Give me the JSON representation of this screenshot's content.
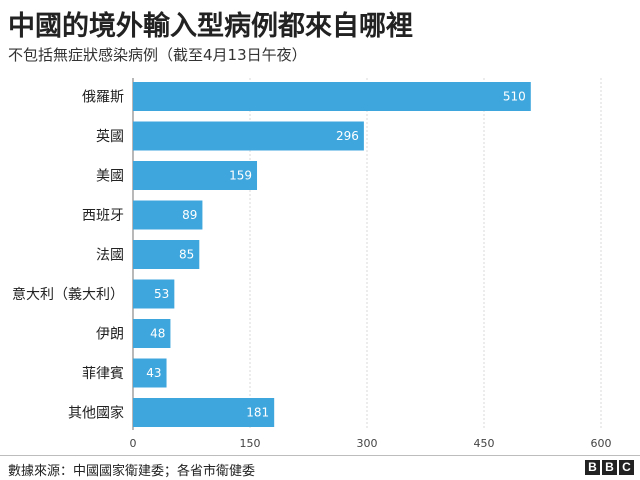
{
  "chart_data": {
    "type": "bar",
    "orientation": "horizontal",
    "title": "中國的境外輸入型病例都來自哪裡",
    "subtitle": "不包括無症狀感染病例（截至4月13日午夜）",
    "categories": [
      "俄羅斯",
      "英國",
      "美國",
      "西班牙",
      "法國",
      "意大利（義大利）",
      "伊朗",
      "菲律賓",
      "其他國家"
    ],
    "values": [
      510,
      296,
      159,
      89,
      85,
      53,
      48,
      43,
      181
    ],
    "xlim": [
      0,
      600
    ],
    "xticks": [
      "0",
      "150",
      "300",
      "450",
      "600"
    ],
    "grid": true,
    "bar_color": "#3ea6dc"
  },
  "footer": {
    "source": "數據來源：中國國家衛建委；各省市衛健委",
    "logo_letters": [
      "B",
      "B",
      "C"
    ]
  }
}
